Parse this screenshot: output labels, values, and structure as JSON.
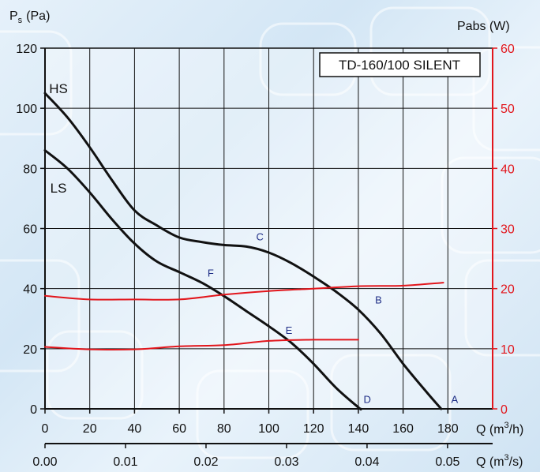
{
  "chart_data": {
    "type": "line",
    "title": "TD-160/100 SILENT",
    "ylabel": "P",
    "ylabel_sub": "s",
    "ylabel_unit": "(Pa)",
    "y2label": "Pabs (W)",
    "xlabel": "Q (m",
    "xlabel_sup": "3",
    "xlabel_unit": "/h)",
    "x2label": "Q (m",
    "x2label_sup": "3",
    "x2label_unit": "/s)",
    "xlim": [
      0,
      200
    ],
    "ylim": [
      0,
      120
    ],
    "y2lim": [
      0,
      60
    ],
    "x2lim": [
      0,
      0.0556
    ],
    "x_ticks": [
      "0",
      "20",
      "40",
      "60",
      "80",
      "100",
      "120",
      "140",
      "160",
      "180"
    ],
    "x_tick_values": [
      0,
      20,
      40,
      60,
      80,
      100,
      120,
      140,
      160,
      180
    ],
    "x2_ticks": [
      "0.00",
      "0.01",
      "0.02",
      "0.03",
      "0.04",
      "0.05"
    ],
    "x2_tick_values": [
      0,
      0.01,
      0.02,
      0.03,
      0.04,
      0.05
    ],
    "y_ticks": [
      "0",
      "20",
      "40",
      "60",
      "80",
      "100",
      "120"
    ],
    "y_tick_values": [
      0,
      20,
      40,
      60,
      80,
      100,
      120
    ],
    "y2_ticks": [
      "0",
      "10",
      "20",
      "30",
      "40",
      "50",
      "60"
    ],
    "y2_tick_values": [
      0,
      10,
      20,
      30,
      40,
      50,
      60
    ],
    "grid": true,
    "colors": {
      "pressure": "#111111",
      "power": "#e2161c",
      "points": "#1f2e86"
    },
    "series": [
      {
        "name": "HS",
        "axis": "left",
        "x": [
          0,
          10,
          20,
          30,
          40,
          50,
          60,
          70,
          80,
          90,
          100,
          110,
          120,
          130,
          140,
          150,
          160,
          170,
          177
        ],
        "y": [
          105,
          97,
          87,
          76,
          66,
          61,
          57,
          55.5,
          54.5,
          54,
          52,
          48.5,
          44,
          39,
          33,
          25,
          15,
          6,
          0
        ]
      },
      {
        "name": "LS",
        "axis": "left",
        "x": [
          0,
          10,
          20,
          30,
          40,
          50,
          60,
          70,
          80,
          90,
          100,
          110,
          120,
          130,
          140,
          141
        ],
        "y": [
          86,
          80,
          72,
          63,
          55,
          49,
          45.5,
          42,
          37.5,
          32.5,
          27.5,
          22,
          15,
          7,
          0.5,
          0
        ]
      },
      {
        "name": "",
        "axis": "right",
        "curve": "HS",
        "x": [
          0,
          20,
          40,
          60,
          80,
          100,
          120,
          140,
          160,
          178
        ],
        "y": [
          18.8,
          18.2,
          18.2,
          18.2,
          19,
          19.6,
          20,
          20.4,
          20.5,
          21
        ]
      },
      {
        "name": "",
        "axis": "right",
        "curve": "LS",
        "x": [
          0,
          20,
          40,
          60,
          80,
          100,
          120,
          140
        ],
        "y": [
          10.3,
          9.9,
          9.9,
          10.4,
          10.6,
          11.3,
          11.5,
          11.5
        ]
      }
    ],
    "annotations": [
      {
        "text": "HS",
        "x": 6,
        "y": 105,
        "kind": "curve"
      },
      {
        "text": "LS",
        "x": 6,
        "y": 72,
        "kind": "curve"
      },
      {
        "text": "A",
        "x": 183,
        "y": 2,
        "kind": "point"
      },
      {
        "text": "B",
        "x": 149,
        "y": 35,
        "kind": "point"
      },
      {
        "text": "C",
        "x": 96,
        "y": 56,
        "kind": "point"
      },
      {
        "text": "D",
        "x": 144,
        "y": 2,
        "kind": "point"
      },
      {
        "text": "E",
        "x": 109,
        "y": 25,
        "kind": "point"
      },
      {
        "text": "F",
        "x": 74,
        "y": 44,
        "kind": "point"
      }
    ]
  }
}
